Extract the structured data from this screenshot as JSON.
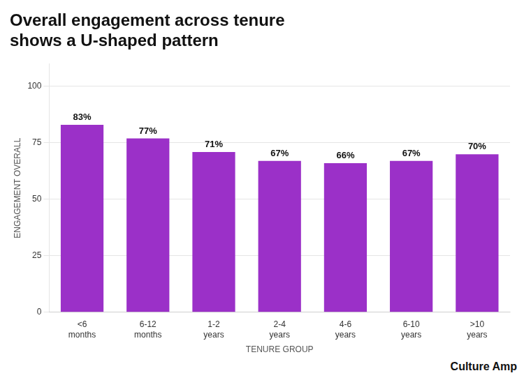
{
  "chart_data": {
    "type": "bar",
    "title": [
      "Overall engagement across tenure",
      "shows a U-shaped pattern"
    ],
    "annotation": "Culture Amp",
    "x_label": "TENURE GROUP",
    "y_label": "ENGAGEMENT OVERALL",
    "categories": [
      "<6\nmonths",
      "6-12\nmonths",
      "1-2\nyears",
      "2-4\nyears",
      "4-6\nyears",
      "6-10\nyears",
      ">10\nyears"
    ],
    "values": [
      83,
      77,
      71,
      67,
      66,
      67,
      70
    ],
    "value_labels": [
      "83%",
      "77%",
      "71%",
      "67%",
      "66%",
      "67%",
      "70%"
    ],
    "data_labels": true,
    "color": "#9B30C8",
    "ylim": [
      0,
      110
    ],
    "yticks": [
      0,
      25,
      50,
      75,
      100
    ],
    "grid": true
  }
}
